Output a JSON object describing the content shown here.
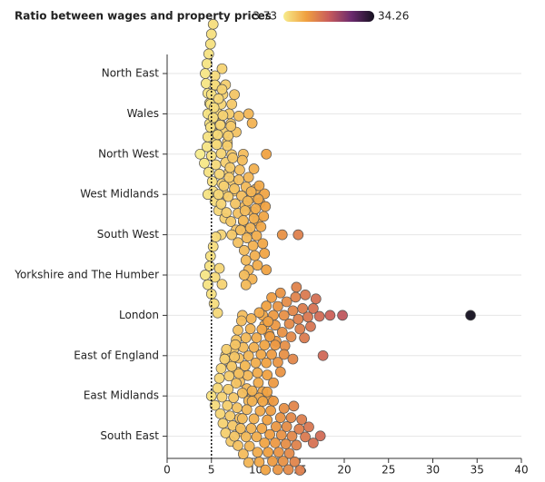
{
  "chart_data": {
    "type": "beeswarm",
    "title": "Ratio between wages and property prices",
    "color_domain": [
      3.73,
      34.26
    ],
    "colors": [
      "#f7ec8c",
      "#f0a040",
      "#c95c5c",
      "#6b2a6e",
      "#14101f"
    ],
    "xlim": [
      0,
      40
    ],
    "xticks": [
      0,
      5,
      10,
      15,
      20,
      25,
      30,
      35,
      40
    ],
    "reference_line": 5,
    "grid": true,
    "categories": [
      "North East",
      "Wales",
      "North West",
      "West Midlands",
      "South West",
      "Yorkshire and The Humber",
      "London",
      "East of England",
      "East Midlands",
      "South East"
    ],
    "values": [
      [
        4.3,
        4.6,
        4.8,
        5.0,
        5.1,
        5.2,
        5.3,
        5.5,
        6.2,
        4.4,
        4.9,
        5.4,
        4.7,
        5.0,
        4.5
      ],
      [
        4.6,
        4.9,
        5.2,
        5.5,
        5.8,
        6.0,
        6.3,
        6.5,
        6.8,
        7.0,
        7.3,
        7.6,
        7.8,
        8.1,
        9.6,
        9.2,
        5.0,
        5.4,
        6.1,
        6.6,
        7.2,
        4.8
      ],
      [
        3.73,
        4.2,
        4.5,
        4.7,
        4.9,
        5.0,
        5.1,
        5.2,
        5.3,
        5.4,
        5.5,
        5.6,
        5.7,
        5.8,
        5.9,
        6.0,
        6.1,
        6.2,
        6.3,
        6.4,
        6.5,
        6.6,
        6.8,
        7.0,
        7.2,
        7.4,
        7.6,
        8.6,
        11.2,
        4.6,
        5.2,
        5.8,
        6.2,
        6.9,
        7.3
      ],
      [
        4.6,
        5.8,
        6.1,
        6.4,
        6.7,
        7.0,
        7.2,
        7.4,
        7.6,
        7.8,
        8.0,
        8.2,
        8.4,
        8.6,
        8.8,
        9.0,
        9.2,
        9.5,
        9.8,
        10.0,
        10.2,
        10.5,
        11.0,
        7.1,
        8.1,
        8.9,
        9.7,
        6.9,
        7.7,
        8.5
      ],
      [
        6.1,
        7.3,
        8.0,
        8.3,
        8.6,
        8.8,
        9.0,
        9.2,
        9.4,
        9.6,
        9.8,
        10.0,
        10.2,
        10.4,
        10.6,
        10.8,
        11.0,
        11.2,
        9.1,
        9.5,
        9.9,
        10.3,
        8.9,
        9.7,
        10.1,
        10.9,
        11.1,
        13.0,
        14.8,
        8.7
      ],
      [
        4.3,
        4.6,
        4.8,
        5.0,
        5.2,
        5.3,
        5.5,
        5.7,
        5.9,
        6.2,
        8.7,
        8.9,
        4.9,
        5.4
      ],
      [
        8.5,
        10.8,
        11.2,
        11.5,
        11.8,
        12.0,
        12.3,
        12.5,
        12.8,
        13.0,
        13.2,
        13.5,
        13.8,
        14.0,
        14.2,
        14.5,
        14.8,
        15.0,
        15.3,
        15.6,
        15.9,
        16.2,
        16.5,
        16.8,
        17.2,
        18.4,
        19.8,
        34.26,
        11.0,
        12.2,
        13.3,
        14.6,
        15.5
      ],
      [
        6.6,
        7.2,
        7.5,
        7.8,
        8.0,
        8.2,
        8.4,
        8.6,
        8.8,
        9.0,
        9.2,
        9.4,
        9.6,
        9.8,
        10.0,
        10.2,
        10.4,
        10.6,
        10.8,
        11.0,
        11.2,
        11.4,
        11.6,
        11.8,
        12.0,
        12.2,
        12.5,
        13.2,
        14.2,
        17.6,
        8.1,
        8.9,
        9.5,
        10.1,
        10.7,
        11.3,
        7.9,
        9.1,
        10.3,
        11.5,
        12.8
      ],
      [
        5.0,
        5.4,
        5.7,
        5.9,
        6.1,
        6.3,
        6.5,
        6.7,
        6.9,
        7.1,
        7.3,
        7.5,
        7.7,
        7.9,
        8.1,
        8.3,
        8.5,
        8.8,
        9.2,
        9.6,
        10.4,
        11.3,
        6.0,
        6.6,
        7.0,
        7.4,
        7.8,
        8.2,
        6.2,
        6.8,
        7.2,
        7.6
      ],
      [
        7.6,
        8.0,
        8.3,
        8.6,
        8.9,
        9.2,
        9.5,
        9.8,
        10.1,
        10.4,
        10.7,
        11.0,
        11.3,
        11.6,
        11.9,
        12.2,
        12.5,
        12.8,
        13.1,
        13.4,
        13.7,
        14.0,
        14.3,
        14.6,
        14.9,
        15.2,
        15.6,
        16.0,
        16.5,
        17.3,
        8.5,
        9.0,
        9.6,
        10.2,
        10.8,
        11.4,
        12.0,
        12.6,
        13.2,
        13.8,
        14.4,
        15.0,
        9.3,
        10.5,
        11.7,
        12.9,
        14.1,
        11.1,
        12.3,
        13.5
      ]
    ]
  }
}
